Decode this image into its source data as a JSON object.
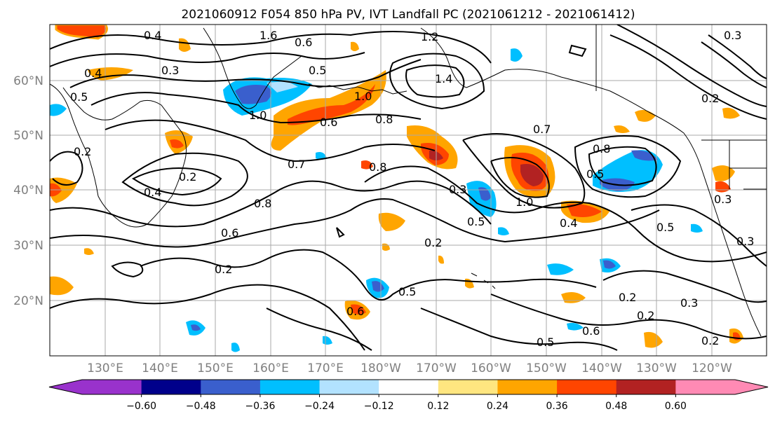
{
  "title": "2021060912 F054 850 hPa PV, IVT Landfall PC (2021061212 - 2021061412)",
  "lat_labels": [
    "60°N",
    "50°N",
    "40°N",
    "30°N",
    "20°N"
  ],
  "lon_labels": [
    "130°E",
    "140°E",
    "150°E",
    "160°E",
    "170°E",
    "180°W",
    "170°W",
    "160°W",
    "150°W",
    "140°W",
    "130°W",
    "120°W"
  ],
  "colorbar": {
    "ticks": [
      "−0.60",
      "−0.48",
      "−0.36",
      "−0.24",
      "−0.12",
      "0.12",
      "0.24",
      "0.36",
      "0.48",
      "0.60"
    ],
    "colors": [
      "#9932cc",
      "#00008b",
      "#3a5fcd",
      "#00bfff",
      "#b2e2ff",
      "#ffffff",
      "#ffe680",
      "#ffa500",
      "#ff4500",
      "#b22222",
      "#ff8ab4"
    ]
  },
  "contour_labels": [
    "0.4",
    "1.6",
    "0.6",
    "1.2",
    "0.3",
    "0.4",
    "0.3",
    "0.5",
    "0.5",
    "1.0",
    "0.6",
    "1.0",
    "1.4",
    "0.2",
    "0.2",
    "0.8",
    "0.7",
    "0.8",
    "0.7",
    "0.8",
    "0.4",
    "0.2",
    "0.8",
    "0.6",
    "0.5",
    "0.3",
    "0.5",
    "0.3",
    "1.0",
    "0.4",
    "0.5",
    "0.2",
    "0.2",
    "0.5",
    "0.6",
    "0.2",
    "0.2",
    "0.3",
    "0.6",
    "0.5",
    "0.2",
    "0.3"
  ]
}
